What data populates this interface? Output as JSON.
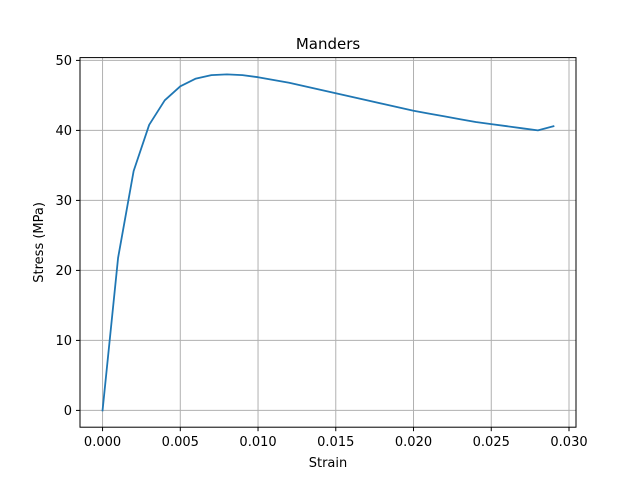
{
  "chart_data": {
    "type": "line",
    "title": "Manders",
    "xlabel": "Strain",
    "ylabel": "Stress (MPa)",
    "xlim": [
      -0.00145,
      0.03045
    ],
    "ylim": [
      -2.4,
      50.4
    ],
    "grid": true,
    "xticks": [
      0.0,
      0.005,
      0.01,
      0.015,
      0.02,
      0.025,
      0.03
    ],
    "xtick_labels": [
      "0.000",
      "0.005",
      "0.010",
      "0.015",
      "0.020",
      "0.025",
      "0.030"
    ],
    "yticks": [
      0,
      10,
      20,
      30,
      40,
      50
    ],
    "ytick_labels": [
      "0",
      "10",
      "20",
      "30",
      "40",
      "50"
    ],
    "series": [
      {
        "color": "#1f77b4",
        "x": [
          0.0,
          0.001,
          0.002,
          0.003,
          0.004,
          0.005,
          0.006,
          0.007,
          0.008,
          0.009,
          0.01,
          0.011,
          0.012,
          0.013,
          0.014,
          0.015,
          0.016,
          0.017,
          0.018,
          0.019,
          0.02,
          0.021,
          0.022,
          0.023,
          0.024,
          0.025,
          0.026,
          0.027,
          0.028,
          0.029
        ],
        "y": [
          0.0,
          21.8,
          34.2,
          40.8,
          44.3,
          46.3,
          47.4,
          47.9,
          48.0,
          47.9,
          47.6,
          47.2,
          46.8,
          46.3,
          45.8,
          45.3,
          44.8,
          44.3,
          43.8,
          43.3,
          42.8,
          42.4,
          42.0,
          41.6,
          41.2,
          40.9,
          40.6,
          40.3,
          40.0,
          40.6
        ]
      }
    ]
  }
}
